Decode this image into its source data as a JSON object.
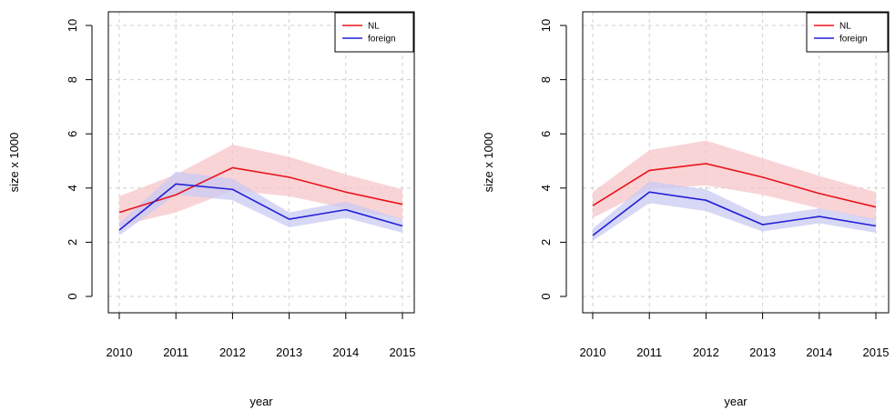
{
  "chart_data": [
    {
      "type": "line",
      "title": "",
      "xlabel": "year",
      "ylabel": "size x 1000",
      "x": [
        2010,
        2011,
        2012,
        2013,
        2014,
        2015
      ],
      "xlim": [
        2010,
        2015
      ],
      "ylim": [
        0,
        10
      ],
      "yticks": [
        0,
        2,
        4,
        6,
        8,
        10
      ],
      "grid": true,
      "legend_position": "top-right",
      "series": [
        {
          "name": "NL",
          "color": "#e8131b",
          "band_color": "#f7c6c8",
          "values": [
            3.1,
            3.75,
            4.75,
            4.4,
            3.85,
            3.4
          ],
          "lower": [
            2.6,
            3.1,
            3.9,
            3.7,
            3.25,
            2.85
          ],
          "upper": [
            3.7,
            4.5,
            5.6,
            5.15,
            4.5,
            3.95
          ]
        },
        {
          "name": "foreign",
          "color": "#2220d6",
          "band_color": "#c9c9f3",
          "values": [
            2.45,
            4.15,
            3.95,
            2.85,
            3.2,
            2.6
          ],
          "lower": [
            2.25,
            3.75,
            3.55,
            2.55,
            2.9,
            2.35
          ],
          "upper": [
            2.7,
            4.6,
            4.35,
            3.1,
            3.5,
            2.85
          ]
        }
      ]
    },
    {
      "type": "line",
      "title": "",
      "xlabel": "year",
      "ylabel": "size x 1000",
      "x": [
        2010,
        2011,
        2012,
        2013,
        2014,
        2015
      ],
      "xlim": [
        2010,
        2015
      ],
      "ylim": [
        0,
        10
      ],
      "yticks": [
        0,
        2,
        4,
        6,
        8,
        10
      ],
      "grid": true,
      "legend_position": "top-right",
      "series": [
        {
          "name": "NL",
          "color": "#e8131b",
          "band_color": "#f7c6c8",
          "values": [
            3.35,
            4.65,
            4.9,
            4.4,
            3.8,
            3.3
          ],
          "lower": [
            2.9,
            3.95,
            4.1,
            3.75,
            3.25,
            2.8
          ],
          "upper": [
            3.85,
            5.4,
            5.75,
            5.1,
            4.45,
            3.85
          ]
        },
        {
          "name": "foreign",
          "color": "#2220d6",
          "band_color": "#c9c9f3",
          "values": [
            2.25,
            3.85,
            3.55,
            2.65,
            2.95,
            2.6
          ],
          "lower": [
            2.05,
            3.45,
            3.15,
            2.4,
            2.7,
            2.35
          ],
          "upper": [
            2.5,
            4.25,
            3.95,
            2.95,
            3.25,
            2.85
          ]
        }
      ]
    }
  ]
}
